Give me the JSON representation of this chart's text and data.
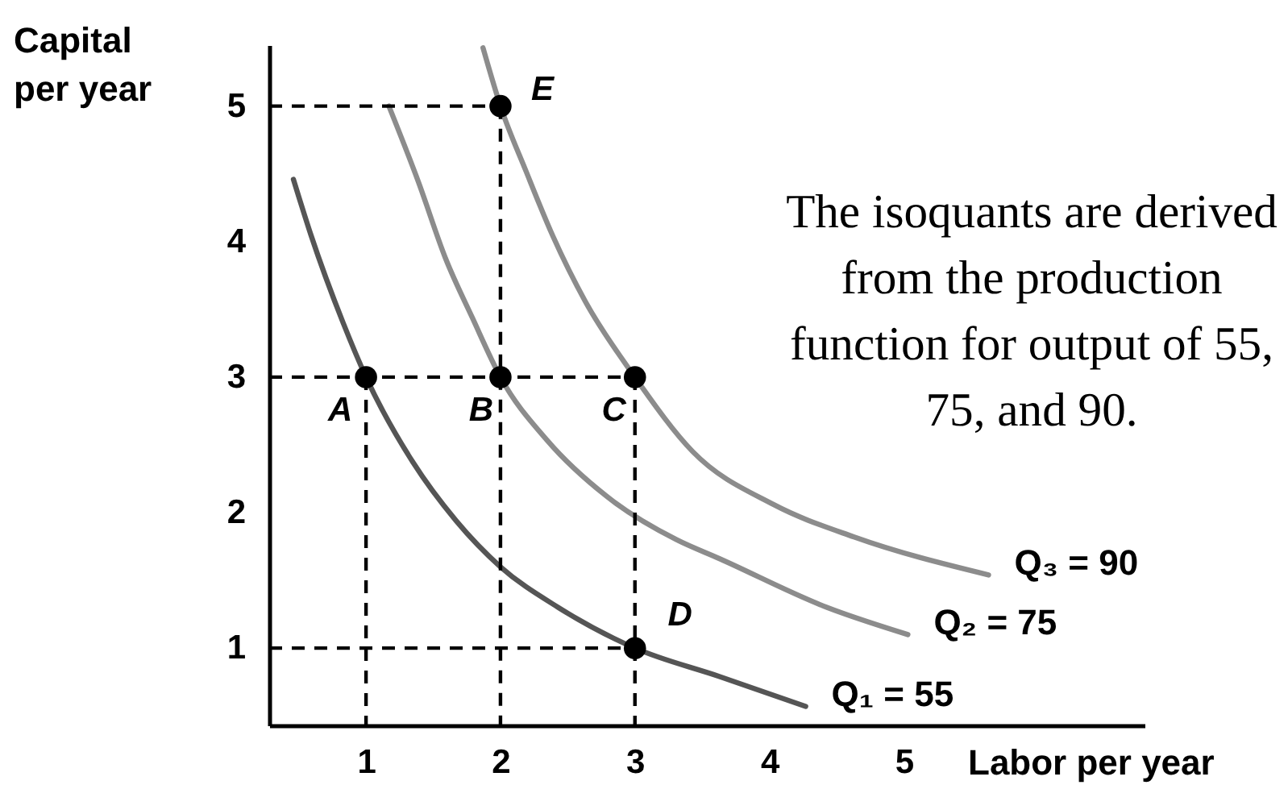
{
  "chart_data": {
    "type": "line",
    "xlabel": "Labor per year",
    "ylabel": "Capital per year",
    "xlim": [
      0.28,
      6.79
    ],
    "ylim": [
      0.43,
      5.45
    ],
    "xticks": [
      1,
      2,
      3,
      4,
      5
    ],
    "yticks": [
      1,
      2,
      3,
      4,
      5
    ],
    "series": [
      {
        "name": "Q₁ = 55",
        "color": "#555555",
        "x": [
          0.46,
          0.59,
          0.83,
          1,
          1.35,
          1.67,
          2,
          2.43,
          3,
          3.63,
          4.27
        ],
        "values": [
          4.46,
          4.05,
          3.4,
          3,
          2.37,
          1.94,
          1.6,
          1.3,
          1,
          0.79,
          0.57
        ]
      },
      {
        "name": "Q₂ = 75",
        "color": "#8c8c8c",
        "x": [
          1.17,
          1.39,
          1.59,
          1.79,
          2,
          2.35,
          2.79,
          3.31,
          3.63,
          4.43,
          5.03
        ],
        "values": [
          5,
          4.44,
          3.88,
          3.44,
          3,
          2.53,
          2.12,
          1.8,
          1.66,
          1.3,
          1.1
        ]
      },
      {
        "name": "Q₃ = 90",
        "color": "#8c8c8c",
        "x": [
          1.87,
          2,
          2.19,
          2.39,
          2.63,
          3,
          3.43,
          4.03,
          4.63,
          5.63
        ],
        "values": [
          5.43,
          5,
          4.52,
          4.04,
          3.56,
          3,
          2.45,
          2.06,
          1.82,
          1.54
        ]
      },
      {
        "type": "line",
        "line_style": "dashed",
        "color": "#000000",
        "x": [
          0.28,
          2
        ],
        "values": [
          5,
          5
        ]
      },
      {
        "type": "line",
        "line_style": "dashed",
        "color": "#000000",
        "x": [
          0.28,
          3
        ],
        "values": [
          3,
          3
        ]
      },
      {
        "type": "line",
        "line_style": "dashed",
        "color": "#000000",
        "x": [
          0.28,
          3
        ],
        "values": [
          1,
          1
        ]
      },
      {
        "type": "line",
        "line_style": "dashed",
        "color": "#000000",
        "x": [
          1,
          1
        ],
        "values": [
          3,
          0.43
        ]
      },
      {
        "type": "line",
        "line_style": "dashed",
        "color": "#000000",
        "x": [
          2,
          2
        ],
        "values": [
          5,
          0.43
        ]
      },
      {
        "type": "line",
        "line_style": "dashed",
        "color": "#000000",
        "x": [
          3,
          3
        ],
        "values": [
          3,
          0.43
        ]
      },
      {
        "type": "scatter",
        "marker": "circle",
        "color": "#000000",
        "x": [
          1,
          2,
          3,
          3,
          2
        ],
        "values": [
          3,
          3,
          3,
          1,
          5
        ]
      }
    ],
    "annotations": [
      {
        "text": "A",
        "x": 1,
        "y": 3
      },
      {
        "text": "B",
        "x": 2,
        "y": 3
      },
      {
        "text": "C",
        "x": 3,
        "y": 3
      },
      {
        "text": "D",
        "x": 3,
        "y": 1
      },
      {
        "text": "E",
        "x": 2,
        "y": 5
      },
      "The isoquants are derived from the production function for output of 55, 75, and 90."
    ]
  }
}
